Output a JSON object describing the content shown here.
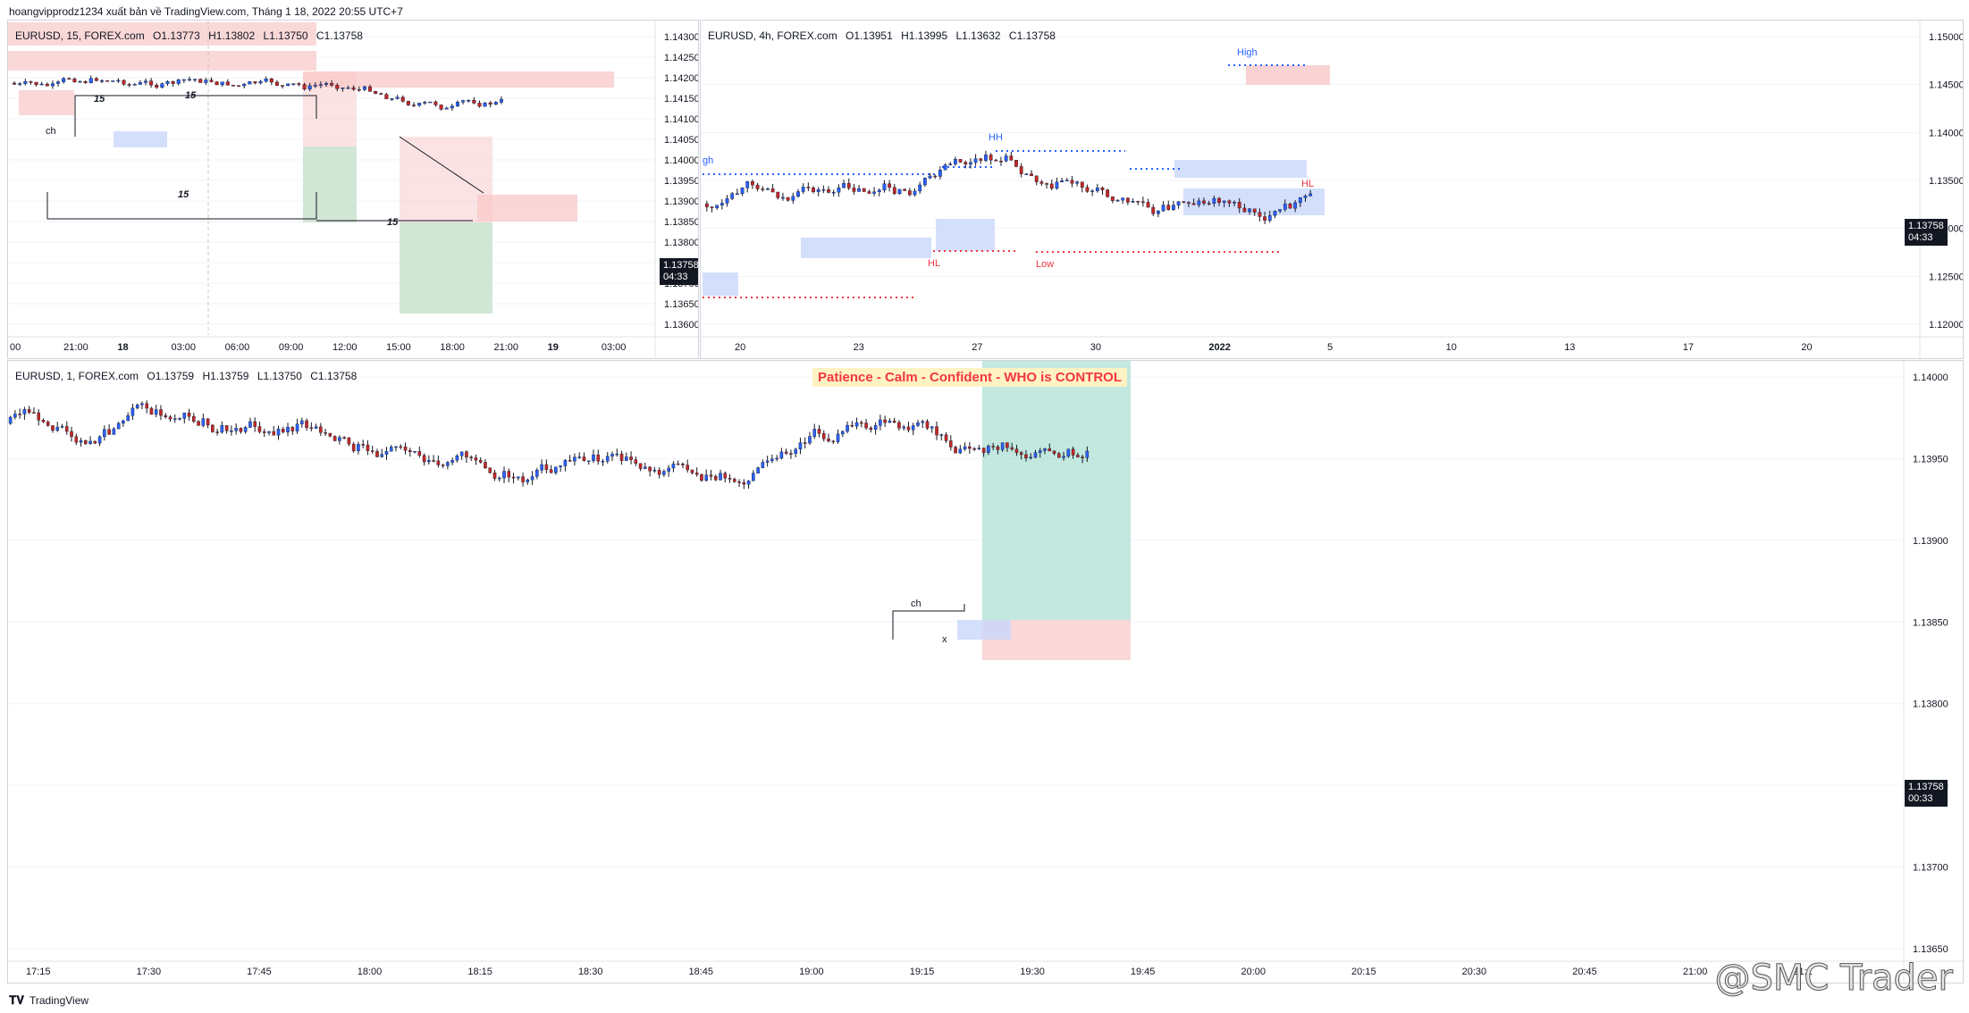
{
  "header": {
    "publisher": "hoangvipprodz1234 xuất bản về TradingView.com, Tháng 1 18, 2022 20:55 UTC+7"
  },
  "footer": {
    "brand": "TradingView"
  },
  "watermark": "@SMC Trader",
  "colors": {
    "up": "#2962ff",
    "down": "#c62828",
    "grid": "#f0f3fa",
    "supply": "#f8c8c8",
    "demand": "#c9d7fb",
    "target": "#8fd6c7",
    "greenbox": "#cde3d0"
  },
  "panes": {
    "tl": {
      "symbol": "EURUSD, 15, FOREX.com",
      "o": "O1.13773",
      "h": "H1.13802",
      "l": "L1.13750",
      "c": "C1.13758",
      "price_axis": [
        "1.14300",
        "1.14250",
        "1.14200",
        "1.14150",
        "1.14100",
        "1.14050",
        "1.14000",
        "1.13950",
        "1.13900",
        "1.13850",
        "1.13800",
        "1.13750",
        "1.13700",
        "1.13650",
        "1.13600"
      ],
      "time_axis": [
        "00",
        "21:00",
        "18",
        "03:00",
        "06:00",
        "09:00",
        "12:00",
        "15:00",
        "18:00",
        "21:00",
        "19",
        "03:00"
      ],
      "last_price": "1.13758",
      "countdown": "04:33",
      "labels": {
        "ch": "ch",
        "l15a": "15",
        "l15b": "15",
        "l15c": "15",
        "l15d": "15"
      }
    },
    "tr": {
      "symbol": "EURUSD, 4h, FOREX.com",
      "o": "O1.13951",
      "h": "H1.13995",
      "l": "L1.13632",
      "c": "C1.13758",
      "price_axis": [
        "1.15000",
        "1.14500",
        "1.14000",
        "1.13500",
        "1.13000",
        "1.12500",
        "1.12000"
      ],
      "time_axis": [
        "20",
        "23",
        "27",
        "30",
        "2022",
        "5",
        "10",
        "13",
        "17",
        "20"
      ],
      "last_price": "1.13758",
      "countdown": "04:33",
      "labels": {
        "gh": "gh",
        "hh": "HH",
        "high": "High",
        "hl1": "HL",
        "low": "Low",
        "hl2": "HL"
      }
    },
    "bottom": {
      "symbol": "EURUSD, 1, FOREX.com",
      "o": "O1.13759",
      "h": "H1.13759",
      "l": "L1.13750",
      "c": "C1.13758",
      "banner": "Patience - Calm - Confident - WHO is CONTROL",
      "price_axis": [
        "1.14000",
        "1.13950",
        "1.13900",
        "1.13850",
        "1.13800",
        "1.13750",
        "1.13700",
        "1.13650"
      ],
      "time_axis": [
        "17:15",
        "17:30",
        "17:45",
        "18:00",
        "18:15",
        "18:30",
        "18:45",
        "19:00",
        "19:15",
        "19:30",
        "19:45",
        "20:00",
        "20:15",
        "20:30",
        "20:45",
        "21:00",
        "21:1"
      ],
      "last_price": "1.13758",
      "countdown": "00:33",
      "labels": {
        "ch": "ch",
        "x": "x"
      }
    }
  }
}
